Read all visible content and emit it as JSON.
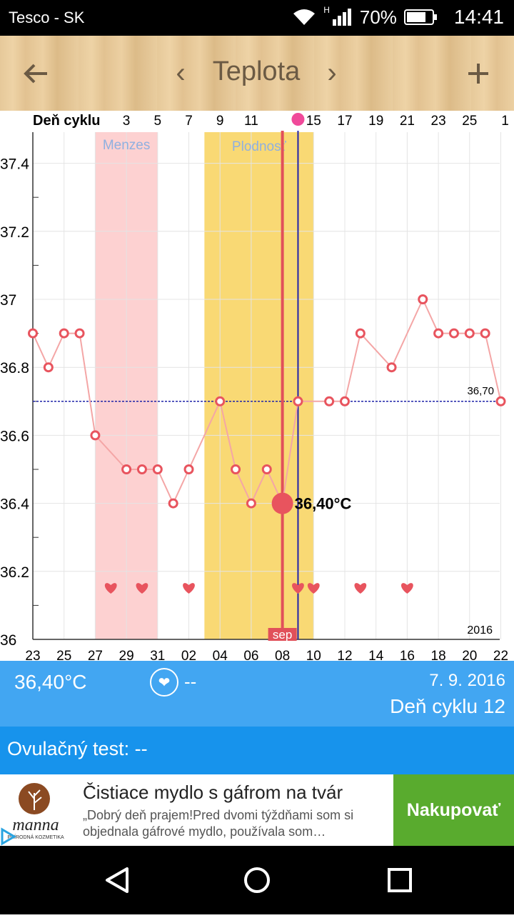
{
  "status": {
    "carrier": "Tesco - SK",
    "network": "H",
    "battery": "70%",
    "time": "14:41"
  },
  "header": {
    "title": "Teplota",
    "prev": "‹",
    "next": "›"
  },
  "chart": {
    "cycle_label": "Deň cyklu",
    "top_ticks": [
      "3",
      "5",
      "7",
      "9",
      "11",
      "15",
      "17",
      "19",
      "21",
      "23",
      "25",
      "1"
    ],
    "y_ticks": [
      "37.4",
      "37.2",
      "37",
      "36.8",
      "36.6",
      "36.4",
      "36.2",
      "36"
    ],
    "bottom_ticks": [
      "23",
      "25",
      "27",
      "29",
      "31",
      "02",
      "04",
      "06",
      "08",
      "10",
      "12",
      "14",
      "16",
      "18",
      "20",
      "22"
    ],
    "menses_label": "Menzes",
    "fertile_label": "Plodnosť",
    "ref_label": "36,70",
    "sel_label": "36,40°C",
    "month_label": "sep",
    "year_label": "2016"
  },
  "chart_data": {
    "type": "line",
    "x_start": 23,
    "y": [
      36.9,
      36.8,
      36.9,
      36.9,
      36.6,
      null,
      36.5,
      36.5,
      36.5,
      36.4,
      36.5,
      null,
      36.7,
      36.5,
      36.4,
      36.5,
      36.4,
      36.7,
      null,
      36.7,
      36.7,
      36.9,
      null,
      36.8,
      null,
      37.0,
      36.9,
      36.9,
      36.9,
      36.9,
      36.7
    ],
    "reference": 36.7,
    "selected_index": 16,
    "selected_value": 36.4,
    "hearts": [
      5,
      7,
      10,
      17,
      18,
      21,
      24
    ],
    "menses_range": [
      4,
      8
    ],
    "fertile_range": [
      11,
      18
    ],
    "ylim": [
      36.0,
      37.5
    ],
    "colors": {
      "line": "#f4a6a6",
      "marker": "#e8545e",
      "ref": "#1f24a8",
      "sel_line": "#e1505a",
      "today": "#2222aa",
      "menses": "#fdd1d1",
      "fertile": "#f9d974"
    }
  },
  "summary": {
    "temp": "36,40°C",
    "love": "--",
    "date": "7. 9. 2016",
    "cycle": "Deň cyklu 12"
  },
  "ovulation": {
    "text": "Ovulačný test: --"
  },
  "ad": {
    "brand": "manna",
    "sub": "PRÍRODNÁ KOZMETIKA",
    "headline": "Čistiace mydlo s gáfrom na tvár",
    "desc": "„Dobrý deň prajem!Pred dvomi týždňami som si objednala gáfrové mydlo, používala som…",
    "cta": "Nakupovať"
  }
}
